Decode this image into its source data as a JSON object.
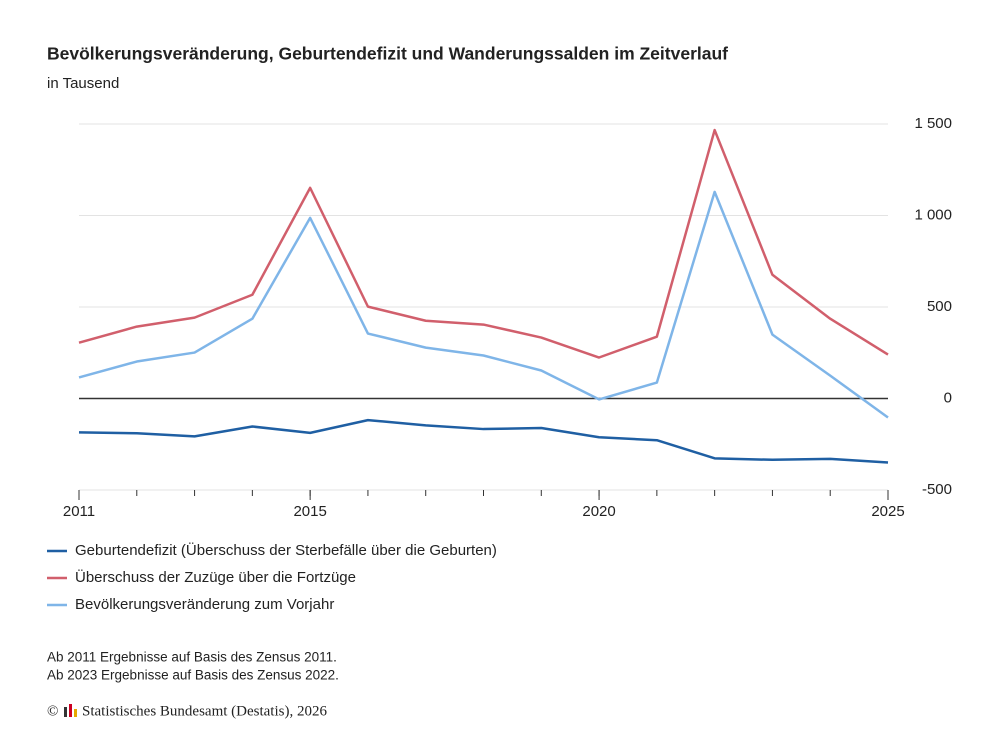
{
  "chart_data": {
    "type": "line",
    "title": "Bevölkerungsveränderung, Geburtendefizit und Wanderungssalden im Zeitverlauf",
    "subtitle": "in Tausend",
    "x": [
      2011,
      2012,
      2013,
      2014,
      2015,
      2016,
      2017,
      2018,
      2019,
      2020,
      2021,
      2022,
      2023,
      2024,
      2025
    ],
    "xlim": [
      2011,
      2025
    ],
    "xticks": [
      2011,
      2015,
      2020,
      2025
    ],
    "ylim": [
      -500,
      1500
    ],
    "yticks": [
      {
        "value": -500,
        "label": "-500"
      },
      0,
      500,
      {
        "value": 1000,
        "label": "1 000"
      },
      {
        "value": 1500,
        "label": "1 500"
      }
    ],
    "grid": true,
    "legend": "bottom",
    "series": [
      {
        "name": "Geburtendefizit (Überschuss der Sterbefälle über die Geburten)",
        "color": "#1f5fa3",
        "values": [
          -185,
          -190,
          -207,
          -153,
          -188,
          -118,
          -147,
          -167,
          -161,
          -212,
          -228,
          -327,
          -335,
          -330,
          -350
        ]
      },
      {
        "name": "Überschuss der Zuzüge über die Fortzüge",
        "color": "#d15f6c",
        "values": [
          305,
          393,
          442,
          567,
          1151,
          502,
          425,
          404,
          333,
          224,
          338,
          1467,
          676,
          436,
          240
        ]
      },
      {
        "name": "Bevölkerungsveränderung zum Vorjahr",
        "color": "#7fb5e8",
        "values": [
          115,
          202,
          251,
          436,
          987,
          355,
          278,
          235,
          153,
          -5,
          87,
          1129,
          349,
          125,
          -104
        ]
      }
    ],
    "notes": [
      "Ab 2011 Ergebnisse auf Basis des Zensus 2011.",
      "Ab 2023 Ergebnisse auf Basis des Zensus 2022."
    ],
    "copyright_symbol": "©",
    "source": "Statistisches Bundesamt (Destatis), 2026"
  }
}
